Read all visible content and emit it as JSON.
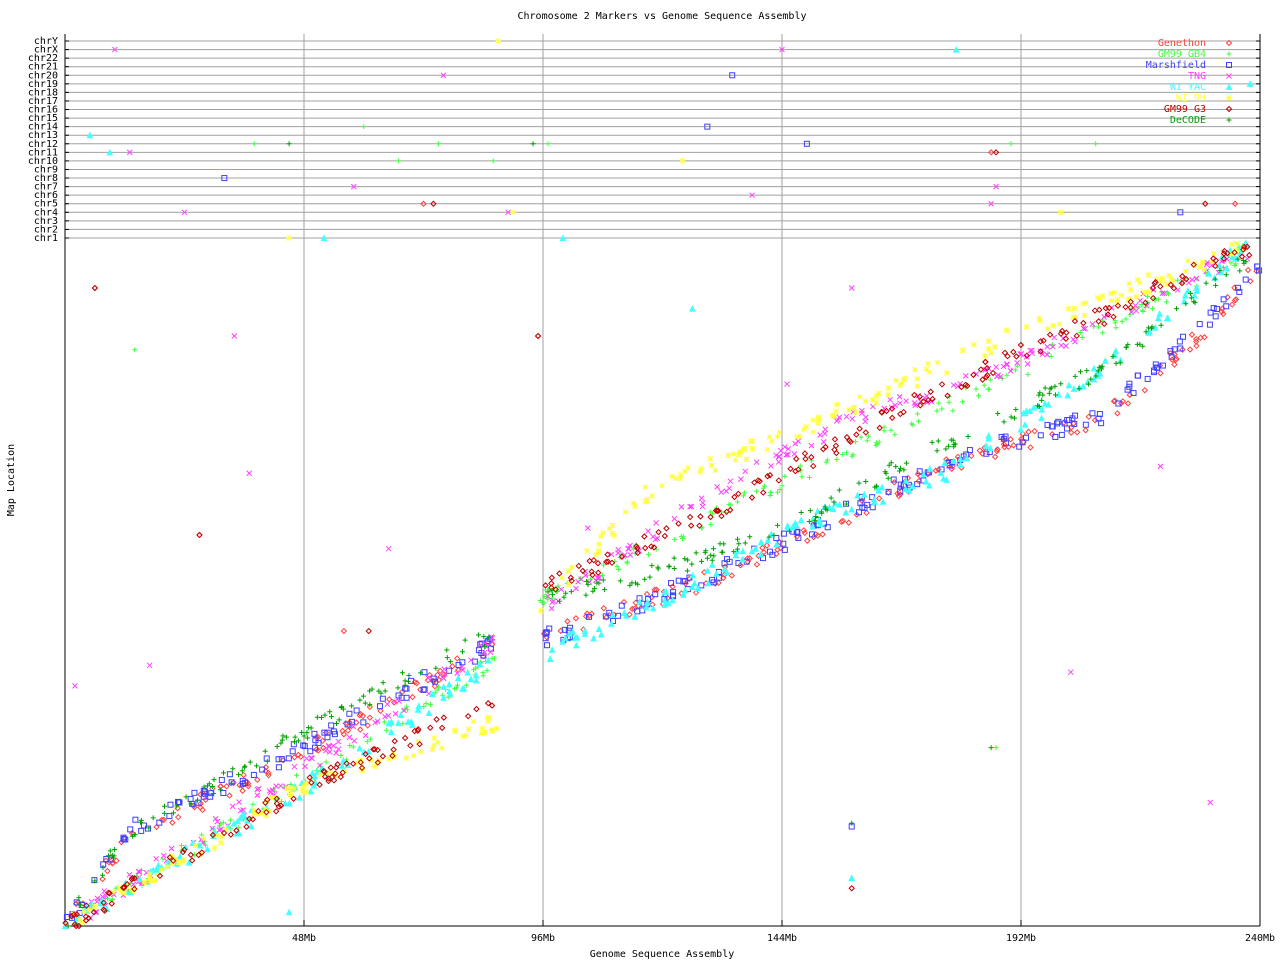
{
  "chart_data": {
    "type": "scatter",
    "title": "Chromosome 2 Markers vs Genome Sequence Assembly",
    "xlabel": "Genome Sequence Assembly",
    "ylabel": "Map Location",
    "xlim": [
      0,
      240
    ],
    "x_ticks": [
      "48Mb",
      "96Mb",
      "144Mb",
      "192Mb",
      "240Mb"
    ],
    "x_tick_values": [
      48,
      96,
      144,
      192,
      240
    ],
    "ylim": [
      0,
      100
    ],
    "grid": true,
    "legend_position": "top-right",
    "chromosome_band_labels": [
      "chrY",
      "chrX",
      "chr22",
      "chr21",
      "chr20",
      "chr19",
      "chr18",
      "chr17",
      "chr16",
      "chr15",
      "chr14",
      "chr13",
      "chr12",
      "chr11",
      "chr10",
      "chr9",
      "chr8",
      "chr7",
      "chr6",
      "chr5",
      "chr4",
      "chr3",
      "chr2",
      "chr1"
    ],
    "series": [
      {
        "name": "Genethon",
        "color": "#ff4040",
        "marker": "diamond",
        "trend": [
          [
            0,
            0
          ],
          [
            13,
            13
          ],
          [
            47,
            25
          ],
          [
            87,
            41
          ],
          [
            95.4,
            42
          ],
          [
            127.5,
            50
          ],
          [
            147.6,
            56.5
          ],
          [
            177.7,
            67.5
          ],
          [
            208,
            74
          ],
          [
            228,
            86
          ],
          [
            240,
            97
          ]
        ],
        "band_outliers": [
          [
            72,
            "chr5"
          ],
          [
            235,
            "chr5"
          ],
          [
            186,
            "chr11"
          ]
        ],
        "outliers": [
          [
            6,
            93
          ],
          [
            27,
            57
          ],
          [
            56,
            43
          ],
          [
            95,
            86
          ]
        ]
      },
      {
        "name": "GM99 GB4",
        "color": "#40ff40",
        "marker": "plus",
        "trend": [
          [
            0,
            0
          ],
          [
            47,
            21
          ],
          [
            87,
            39
          ],
          [
            95.4,
            47.5
          ],
          [
            127.5,
            59
          ],
          [
            157.6,
            69.5
          ],
          [
            187.8,
            79.5
          ],
          [
            238,
            98.5
          ]
        ],
        "band_outliers": [
          [
            38,
            "chr12"
          ],
          [
            60,
            "chr14"
          ],
          [
            67,
            "chr10"
          ],
          [
            75,
            "chr12"
          ],
          [
            86,
            "chr10"
          ],
          [
            97,
            "chr12"
          ],
          [
            190,
            "chr12"
          ],
          [
            207,
            "chr12"
          ]
        ],
        "outliers": [
          [
            14,
            84
          ],
          [
            187,
            26
          ]
        ]
      },
      {
        "name": "Marshfield",
        "color": "#4040ff",
        "marker": "square",
        "trend": [
          [
            0,
            0
          ],
          [
            13,
            14
          ],
          [
            47,
            25.7
          ],
          [
            87,
            41.7
          ],
          [
            95.4,
            41.7
          ],
          [
            127.5,
            50.4
          ],
          [
            147.6,
            57
          ],
          [
            177.7,
            68
          ],
          [
            208,
            74.5
          ],
          [
            228,
            87
          ],
          [
            240,
            97
          ]
        ],
        "band_outliers": [
          [
            32,
            "chr8"
          ],
          [
            129,
            "chr14"
          ],
          [
            149,
            "chr12"
          ],
          [
            224,
            "chr4"
          ],
          [
            134,
            "chr20"
          ]
        ],
        "outliers": [
          [
            158,
            14.5
          ]
        ]
      },
      {
        "name": "TNG",
        "color": "#ff40ff",
        "marker": "x",
        "trend": [
          [
            0,
            0
          ],
          [
            47,
            22.7
          ],
          [
            87,
            41.7
          ],
          [
            95.4,
            46
          ],
          [
            127.5,
            62
          ],
          [
            157.6,
            73.8
          ],
          [
            187.8,
            81
          ],
          [
            238,
            98.5
          ]
        ],
        "band_outliers": [
          [
            10,
            "chrX"
          ],
          [
            13,
            "chr11"
          ],
          [
            24,
            "chr4"
          ],
          [
            58,
            "chr7"
          ],
          [
            76,
            "chr20"
          ],
          [
            89,
            "chr4"
          ],
          [
            144,
            "chrX"
          ],
          [
            138,
            "chr6"
          ],
          [
            186,
            "chr5"
          ],
          [
            187,
            "chr7"
          ]
        ],
        "outliers": [
          [
            2,
            35
          ],
          [
            17,
            38
          ],
          [
            34,
            86
          ],
          [
            37,
            66
          ],
          [
            65,
            55
          ],
          [
            105,
            58
          ],
          [
            145,
            79
          ],
          [
            158,
            93
          ],
          [
            220,
            67
          ],
          [
            230,
            18
          ],
          [
            202,
            37
          ]
        ]
      },
      {
        "name": "WI YAC",
        "color": "#40ffff",
        "marker": "triangle",
        "trend": [
          [
            0,
            0
          ],
          [
            47,
            19.8
          ],
          [
            87,
            38.8
          ],
          [
            95.4,
            39.5
          ],
          [
            127.5,
            50.4
          ],
          [
            147.6,
            58.5
          ],
          [
            177.7,
            66.5
          ],
          [
            208,
            81
          ],
          [
            238,
            100
          ]
        ],
        "band_outliers": [
          [
            5,
            "chr13"
          ],
          [
            9,
            "chr11"
          ],
          [
            52,
            "chr1"
          ],
          [
            100,
            "chr1"
          ],
          [
            179,
            "chrX"
          ],
          [
            238,
            "chr19"
          ]
        ],
        "outliers": [
          [
            45,
            2
          ],
          [
            126,
            90
          ],
          [
            158,
            7
          ]
        ]
      },
      {
        "name": "WI RH",
        "color": "#ffff40",
        "marker": "asterisk",
        "trend": [
          [
            0,
            0
          ],
          [
            47,
            19.8
          ],
          [
            87,
            30
          ],
          [
            95.4,
            46
          ],
          [
            117.5,
            63.6
          ],
          [
            147.6,
            72.3
          ],
          [
            187.8,
            85.4
          ],
          [
            238,
            99.3
          ]
        ],
        "band_outliers": [
          [
            87,
            "chrY"
          ],
          [
            45,
            "chr1"
          ],
          [
            90,
            "chr4"
          ],
          [
            124,
            "chr10"
          ],
          [
            200,
            "chr4"
          ]
        ],
        "outliers": []
      },
      {
        "name": "GM99 G3",
        "color": "#c00000",
        "marker": "diamond",
        "trend": [
          [
            0,
            0
          ],
          [
            47,
            19.8
          ],
          [
            87,
            33
          ],
          [
            95.4,
            49
          ],
          [
            127.5,
            59.2
          ],
          [
            167.7,
            75.2
          ],
          [
            197.9,
            85.4
          ],
          [
            238,
            99
          ]
        ],
        "band_outliers": [
          [
            74,
            "chr5"
          ],
          [
            187,
            "chr11"
          ],
          [
            229,
            "chr5"
          ]
        ],
        "outliers": [
          [
            6,
            93
          ],
          [
            27,
            57
          ],
          [
            61,
            43
          ],
          [
            95,
            86
          ],
          [
            158,
            5.5
          ]
        ]
      },
      {
        "name": "DeCODE",
        "color": "#00a000",
        "marker": "plus",
        "trend": [
          [
            0,
            0
          ],
          [
            11,
            12.5
          ],
          [
            47,
            27.8
          ],
          [
            87,
            43
          ],
          [
            95.4,
            47.5
          ],
          [
            127.5,
            53.4
          ],
          [
            147.6,
            59.2
          ],
          [
            177.7,
            70.8
          ],
          [
            208,
            81
          ],
          [
            238,
            97.8
          ]
        ],
        "band_outliers": [
          [
            94,
            "chr12"
          ],
          [
            45,
            "chr12"
          ]
        ],
        "outliers": [
          [
            158,
            15
          ],
          [
            186,
            26
          ]
        ]
      }
    ],
    "gap_mb": [
      88,
      93
    ]
  }
}
